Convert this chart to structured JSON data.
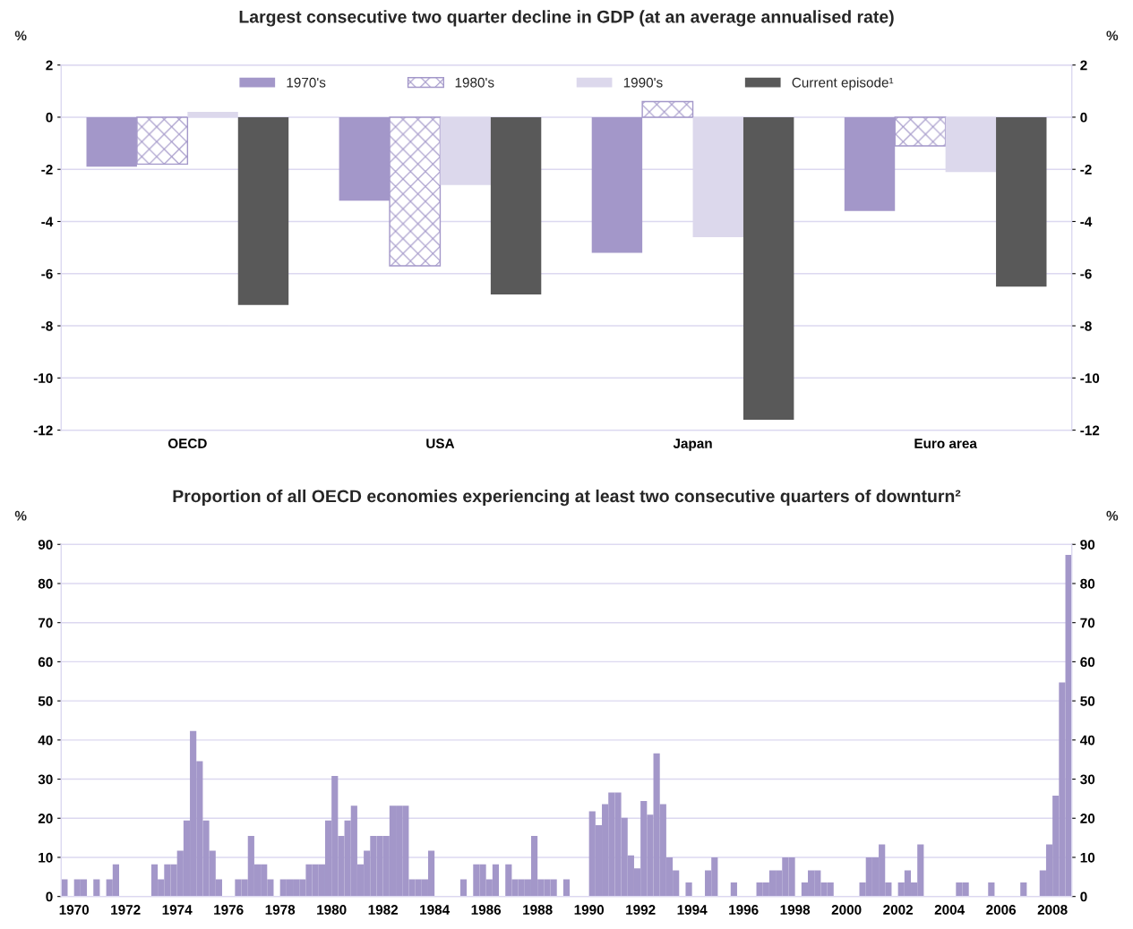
{
  "chart_data": [
    {
      "type": "bar",
      "title": "Largest consecutive two quarter decline in GDP (at an average annualised rate)",
      "ylabel": "%",
      "y2label": "%",
      "categories": [
        "OECD",
        "USA",
        "Japan",
        "Euro area"
      ],
      "series": [
        {
          "name": "1970's",
          "color": "#a397c9",
          "values": [
            -1.9,
            -3.2,
            -5.2,
            -3.6
          ]
        },
        {
          "name": "1980's",
          "color": "#a397c9",
          "values": [
            -1.8,
            -5.7,
            0.6,
            -1.1
          ]
        },
        {
          "name": "1990's",
          "color": "#dcd8ec",
          "values": [
            0.2,
            -2.6,
            -4.6,
            -2.1
          ]
        },
        {
          "name": "Current episode¹",
          "color": "#595959",
          "values": [
            -7.2,
            -6.8,
            -11.6,
            -6.5
          ]
        }
      ],
      "ylim": [
        -12,
        2
      ],
      "yticks": [
        -12,
        -10,
        -8,
        -6,
        -4,
        -2,
        0,
        2
      ],
      "y2lim": [
        -12,
        2
      ],
      "y2ticks": [
        -12,
        -10,
        -8,
        -6,
        -4,
        -2,
        0,
        2
      ],
      "grid": "y",
      "legend": "top"
    },
    {
      "type": "bar",
      "title": "Proportion of all OECD economies experiencing at least two consecutive quarters of downturn²",
      "ylabel": "%",
      "y2label": "%",
      "x": [
        1970.125,
        1970.375,
        1970.625,
        1970.875,
        1971.125,
        1971.375,
        1971.625,
        1971.875,
        1972.125,
        1972.375,
        1972.625,
        1972.875,
        1973.125,
        1973.375,
        1973.625,
        1973.875,
        1974.125,
        1974.375,
        1974.625,
        1974.875,
        1975.125,
        1975.375,
        1975.625,
        1975.875,
        1976.125,
        1976.375,
        1976.625,
        1976.875,
        1977.125,
        1977.375,
        1977.625,
        1977.875,
        1978.125,
        1978.375,
        1978.625,
        1978.875,
        1979.125,
        1979.375,
        1979.625,
        1979.875,
        1980.125,
        1980.375,
        1980.625,
        1980.875,
        1981.125,
        1981.375,
        1981.625,
        1981.875,
        1982.125,
        1982.375,
        1982.625,
        1982.875,
        1983.125,
        1983.375,
        1983.625,
        1983.875,
        1984.125,
        1984.375,
        1984.625,
        1984.875,
        1985.125,
        1985.375,
        1985.625,
        1985.875,
        1986.125,
        1986.375,
        1986.625,
        1986.875,
        1987.125,
        1987.375,
        1987.625,
        1987.875,
        1988.125,
        1988.375,
        1988.625,
        1988.875,
        1989.125,
        1989.375,
        1989.625,
        1989.875,
        1990.125,
        1990.375,
        1990.625,
        1990.875,
        1991.125,
        1991.375,
        1991.625,
        1991.875,
        1992.125,
        1992.375,
        1992.625,
        1992.875,
        1993.125,
        1993.375,
        1993.625,
        1993.875,
        1994.125,
        1994.375,
        1994.625,
        1994.875,
        1995.125,
        1995.375,
        1995.625,
        1995.875,
        1996.125,
        1996.375,
        1996.625,
        1996.875,
        1997.125,
        1997.375,
        1997.625,
        1997.875,
        1998.125,
        1998.375,
        1998.625,
        1998.875,
        1999.125,
        1999.375,
        1999.625,
        1999.875,
        2000.125,
        2000.375,
        2000.625,
        2000.875,
        2001.125,
        2001.375,
        2001.625,
        2001.875,
        2002.125,
        2002.375,
        2002.625,
        2002.875,
        2003.125,
        2003.375,
        2003.625,
        2003.875,
        2004.125,
        2004.375,
        2004.625,
        2004.875,
        2005.125,
        2005.375,
        2005.625,
        2005.875,
        2006.125,
        2006.375,
        2006.625,
        2006.875,
        2007.125,
        2007.375,
        2007.625,
        2007.875,
        2008.125,
        2008.375,
        2008.625,
        2008.875,
        2009.125
      ],
      "values": [
        4.4,
        0,
        4.4,
        4.4,
        0,
        4.4,
        0,
        4.4,
        8.2,
        0,
        0,
        0,
        0,
        0,
        8.2,
        4.4,
        8.2,
        8.2,
        11.7,
        19.4,
        42.3,
        34.6,
        19.4,
        11.7,
        4.4,
        0,
        0,
        4.4,
        4.4,
        15.5,
        8.2,
        8.2,
        4.4,
        0,
        4.4,
        4.4,
        4.4,
        4.4,
        8.2,
        8.2,
        8.2,
        19.4,
        30.8,
        15.5,
        19.4,
        23.2,
        8.2,
        11.7,
        15.5,
        15.5,
        15.5,
        23.2,
        23.2,
        23.2,
        4.4,
        4.4,
        4.4,
        11.7,
        0,
        0,
        0,
        0,
        4.4,
        0,
        8.2,
        8.2,
        4.4,
        8.2,
        0,
        8.2,
        4.4,
        4.4,
        4.4,
        15.5,
        4.4,
        4.4,
        4.4,
        0,
        4.4,
        0,
        0,
        0,
        21.8,
        18.2,
        23.6,
        26.6,
        26.6,
        20.1,
        10.5,
        7.2,
        24.4,
        20.9,
        36.6,
        23.6,
        10,
        6.7,
        0,
        3.6,
        0,
        0,
        6.7,
        10,
        0,
        0,
        3.6,
        0,
        0,
        0,
        3.6,
        3.6,
        6.7,
        6.7,
        10,
        10,
        0,
        3.6,
        6.7,
        6.7,
        3.6,
        3.6,
        0,
        0,
        0,
        0,
        3.6,
        10,
        10,
        13.3,
        3.6,
        0,
        3.6,
        6.7,
        3.6,
        13.3,
        0,
        0,
        0,
        0,
        0,
        3.6,
        3.6,
        0,
        0,
        0,
        3.6,
        0,
        0,
        0,
        0,
        3.6,
        0,
        0,
        6.7,
        13.3,
        25.8,
        54.7,
        87.3
      ],
      "color": "#a397c9",
      "xlim": [
        1970,
        2009.25
      ],
      "xticks": [
        {
          "value": 1970.5,
          "label": "1970"
        },
        {
          "value": 1972.5,
          "label": "1972"
        },
        {
          "value": 1974.5,
          "label": "1974"
        },
        {
          "value": 1976.5,
          "label": "1976"
        },
        {
          "value": 1978.5,
          "label": "1978"
        },
        {
          "value": 1980.5,
          "label": "1980"
        },
        {
          "value": 1982.5,
          "label": "1982"
        },
        {
          "value": 1984.5,
          "label": "1984"
        },
        {
          "value": 1986.5,
          "label": "1986"
        },
        {
          "value": 1988.5,
          "label": "1988"
        },
        {
          "value": 1990.5,
          "label": "1990"
        },
        {
          "value": 1992.5,
          "label": "1992"
        },
        {
          "value": 1994.5,
          "label": "1994"
        },
        {
          "value": 1996.5,
          "label": "1996"
        },
        {
          "value": 1998.5,
          "label": "1998"
        },
        {
          "value": 2000.5,
          "label": "2000"
        },
        {
          "value": 2002.5,
          "label": "2002"
        },
        {
          "value": 2004.5,
          "label": "2004"
        },
        {
          "value": 2006.5,
          "label": "2006"
        },
        {
          "value": 2008.5,
          "label": "2008"
        }
      ],
      "ylim": [
        0,
        90
      ],
      "yticks": [
        0,
        10,
        20,
        30,
        40,
        50,
        60,
        70,
        80,
        90
      ],
      "y2lim": [
        0,
        90
      ],
      "y2ticks": [
        0,
        10,
        20,
        30,
        40,
        50,
        60,
        70,
        80,
        90
      ],
      "grid": "y"
    }
  ]
}
